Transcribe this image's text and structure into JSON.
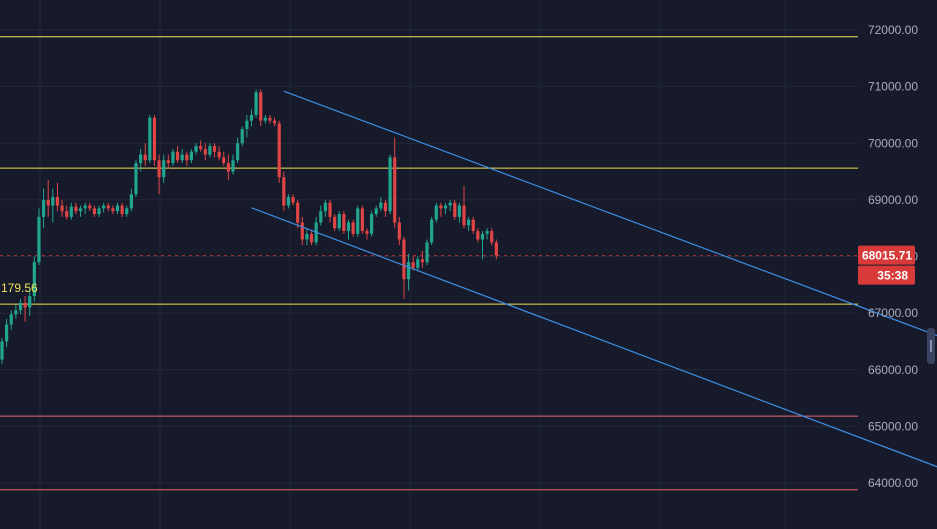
{
  "chart_data": {
    "type": "candlestick",
    "y_axis": {
      "min": 63800,
      "max": 72500,
      "ticks": [
        "72000.00",
        "71000.00",
        "70000.00",
        "69000.00",
        "68000.00",
        "67000.00",
        "66000.00",
        "65000.00",
        "64000.00"
      ],
      "tick_values": [
        72000,
        71000,
        70000,
        69000,
        68000,
        67000,
        66000,
        65000,
        64000
      ],
      "grid": true
    },
    "current_price": {
      "value": 68015.71,
      "label": "68015.71",
      "countdown": "35:38",
      "color": "#d83a3a"
    },
    "horizontal_levels": [
      {
        "price": 71880,
        "color": "#f0e25a"
      },
      {
        "price": 69560,
        "color": "#f0e25a"
      },
      {
        "price": 67160,
        "color": "#f0e25a",
        "label": "179.56"
      },
      {
        "price": 65180,
        "color": "#e46a6a"
      },
      {
        "price": 63880,
        "color": "#e46a6a"
      }
    ],
    "channel_lines": [
      {
        "from": {
          "bar": 61,
          "price": 70920
        },
        "to": {
          "bar": 214,
          "price": 66250
        },
        "color": "#3d8fe6"
      },
      {
        "from": {
          "bar": 54,
          "price": 68860
        },
        "to": {
          "bar": 214,
          "price": 63930
        },
        "color": "#3d8fe6"
      }
    ],
    "up_color": "#22a58e",
    "down_color": "#e04545",
    "ohlc": [
      [
        66180,
        66560,
        66100,
        66500
      ],
      [
        66500,
        66900,
        66400,
        66800
      ],
      [
        66800,
        67050,
        66700,
        66980
      ],
      [
        66980,
        67150,
        66900,
        67050
      ],
      [
        67050,
        67250,
        66980,
        67180
      ],
      [
        67180,
        67300,
        66850,
        67100
      ],
      [
        67100,
        67400,
        66950,
        67300
      ],
      [
        67300,
        68000,
        67200,
        67900
      ],
      [
        67900,
        68850,
        67850,
        68700
      ],
      [
        68700,
        69200,
        68500,
        69000
      ],
      [
        69000,
        69350,
        68700,
        68900
      ],
      [
        68900,
        69200,
        68600,
        69050
      ],
      [
        69050,
        69300,
        68800,
        68900
      ],
      [
        68900,
        69000,
        68700,
        68800
      ],
      [
        68800,
        68900,
        68650,
        68700
      ],
      [
        68700,
        68950,
        68650,
        68880
      ],
      [
        68880,
        68950,
        68750,
        68800
      ],
      [
        68800,
        68900,
        68700,
        68850
      ],
      [
        68850,
        68950,
        68750,
        68900
      ],
      [
        68900,
        68950,
        68800,
        68850
      ],
      [
        68850,
        68900,
        68700,
        68750
      ],
      [
        68750,
        68900,
        68700,
        68850
      ],
      [
        68850,
        68950,
        68780,
        68900
      ],
      [
        68900,
        68950,
        68800,
        68850
      ],
      [
        68850,
        68900,
        68750,
        68800
      ],
      [
        68800,
        68950,
        68750,
        68900
      ],
      [
        68900,
        68950,
        68700,
        68750
      ],
      [
        68750,
        68900,
        68700,
        68850
      ],
      [
        68850,
        69200,
        68800,
        69100
      ],
      [
        69100,
        69700,
        69050,
        69650
      ],
      [
        69650,
        69900,
        69500,
        69800
      ],
      [
        69800,
        70000,
        69600,
        69700
      ],
      [
        69700,
        70500,
        69650,
        70450
      ],
      [
        70450,
        70500,
        69600,
        69700
      ],
      [
        69700,
        69800,
        69100,
        69400
      ],
      [
        69400,
        69800,
        69300,
        69700
      ],
      [
        69700,
        69800,
        69550,
        69650
      ],
      [
        69650,
        69900,
        69600,
        69850
      ],
      [
        69850,
        69950,
        69650,
        69700
      ],
      [
        69700,
        69900,
        69650,
        69800
      ],
      [
        69800,
        69850,
        69600,
        69700
      ],
      [
        69700,
        69900,
        69650,
        69850
      ],
      [
        69850,
        70000,
        69800,
        69950
      ],
      [
        69950,
        70050,
        69850,
        69900
      ],
      [
        69900,
        70000,
        69700,
        69800
      ],
      [
        69800,
        70000,
        69750,
        69950
      ],
      [
        69950,
        70000,
        69750,
        69850
      ],
      [
        69850,
        69950,
        69700,
        69750
      ],
      [
        69750,
        69850,
        69600,
        69650
      ],
      [
        69650,
        69800,
        69350,
        69500
      ],
      [
        69500,
        69800,
        69450,
        69700
      ],
      [
        69700,
        70100,
        69650,
        70000
      ],
      [
        70000,
        70300,
        69950,
        70250
      ],
      [
        70250,
        70500,
        70100,
        70400
      ],
      [
        70400,
        70600,
        70300,
        70500
      ],
      [
        70500,
        70950,
        70450,
        70900
      ],
      [
        70900,
        70950,
        70300,
        70400
      ],
      [
        70400,
        70500,
        70350,
        70450
      ],
      [
        70450,
        70500,
        70350,
        70400
      ],
      [
        70400,
        70450,
        70300,
        70350
      ],
      [
        70350,
        70400,
        69300,
        69400
      ],
      [
        69400,
        69500,
        68800,
        68900
      ],
      [
        68900,
        69100,
        68850,
        69050
      ],
      [
        69050,
        69100,
        68900,
        68950
      ],
      [
        68950,
        69000,
        68500,
        68600
      ],
      [
        68600,
        68700,
        68200,
        68300
      ],
      [
        68300,
        68500,
        68200,
        68400
      ],
      [
        68400,
        68450,
        68200,
        68250
      ],
      [
        68250,
        68700,
        68200,
        68600
      ],
      [
        68600,
        68900,
        68550,
        68800
      ],
      [
        68800,
        69000,
        68700,
        68950
      ],
      [
        68950,
        69000,
        68600,
        68700
      ],
      [
        68700,
        68750,
        68450,
        68500
      ],
      [
        68500,
        68800,
        68450,
        68750
      ],
      [
        68750,
        68800,
        68400,
        68450
      ],
      [
        68450,
        68650,
        68300,
        68600
      ],
      [
        68600,
        68650,
        68350,
        68400
      ],
      [
        68400,
        68900,
        68350,
        68850
      ],
      [
        68850,
        68900,
        68400,
        68450
      ],
      [
        68450,
        68500,
        68300,
        68400
      ],
      [
        68400,
        68800,
        68350,
        68750
      ],
      [
        68750,
        68900,
        68700,
        68850
      ],
      [
        68850,
        69050,
        68800,
        68950
      ],
      [
        68950,
        69000,
        68700,
        68800
      ],
      [
        68800,
        69800,
        68750,
        69750
      ],
      [
        69750,
        70100,
        68500,
        68600
      ],
      [
        68600,
        68700,
        68200,
        68300
      ],
      [
        68300,
        68350,
        67250,
        67600
      ],
      [
        67600,
        68050,
        67400,
        67900
      ],
      [
        67900,
        68000,
        67750,
        67800
      ],
      [
        67800,
        68000,
        67750,
        67950
      ],
      [
        67950,
        68100,
        67800,
        67900
      ],
      [
        67900,
        68300,
        67850,
        68250
      ],
      [
        68250,
        68700,
        68200,
        68650
      ],
      [
        68650,
        68950,
        68600,
        68900
      ],
      [
        68900,
        68950,
        68700,
        68850
      ],
      [
        68850,
        68950,
        68750,
        68900
      ],
      [
        68900,
        69000,
        68800,
        68950
      ],
      [
        68950,
        69000,
        68650,
        68700
      ],
      [
        68700,
        68950,
        68600,
        68900
      ],
      [
        68900,
        69250,
        68500,
        68550
      ],
      [
        68550,
        68700,
        68450,
        68650
      ],
      [
        68650,
        68700,
        68400,
        68450
      ],
      [
        68450,
        68500,
        68250,
        68300
      ],
      [
        68300,
        68450,
        67950,
        68400
      ],
      [
        68400,
        68500,
        68300,
        68450
      ],
      [
        68450,
        68500,
        68200,
        68250
      ],
      [
        68250,
        68300,
        67950,
        68015.71
      ]
    ]
  }
}
